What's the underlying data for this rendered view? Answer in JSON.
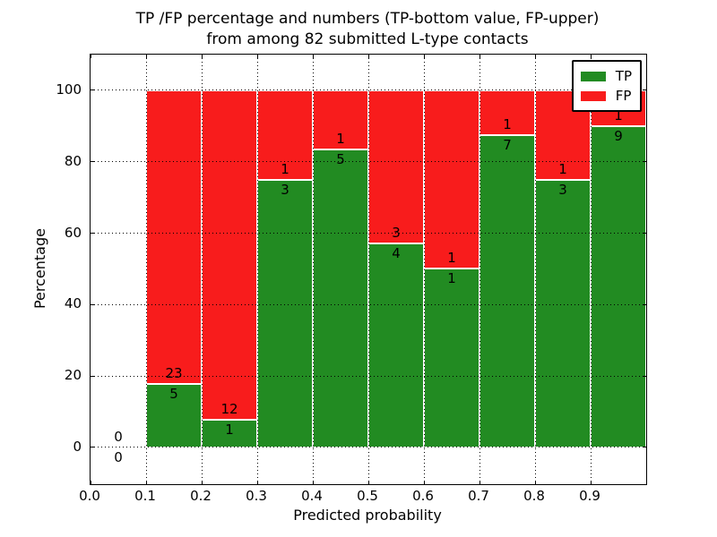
{
  "figure": {
    "title_line1": "TP /FP percentage and numbers (TP-bottom value, FP-upper)",
    "title_line2": "from among 82 submitted L-type contacts",
    "xlabel": "Predicted probability",
    "ylabel": "Percentage"
  },
  "chart_data": {
    "type": "bar",
    "stacked": true,
    "normalized_to_percent": true,
    "title": "TP /FP percentage and numbers (TP-bottom value, FP-upper) from among 82 submitted L-type contacts",
    "xlabel": "Predicted probability",
    "ylabel": "Percentage",
    "total_contacts": 82,
    "bin_width": 0.1,
    "bin_starts": [
      0.0,
      0.1,
      0.2,
      0.3,
      0.4,
      0.5,
      0.6,
      0.7,
      0.8,
      0.9
    ],
    "x_tick_labels": [
      "0.0",
      "0.1",
      "0.2",
      "0.3",
      "0.4",
      "0.5",
      "0.6",
      "0.7",
      "0.8",
      "0.9"
    ],
    "y_ticks": [
      0,
      20,
      40,
      60,
      80,
      100
    ],
    "xlim": [
      0.0,
      1.0
    ],
    "ylim": [
      -10.3,
      110.0
    ],
    "grid": {
      "style": "dotted",
      "axes": "both",
      "above_bars": true
    },
    "legend_position": "upper right",
    "series": [
      {
        "name": "TP",
        "color": "#228b22",
        "counts": [
          0,
          5,
          1,
          3,
          5,
          4,
          1,
          7,
          3,
          9
        ]
      },
      {
        "name": "FP",
        "color": "#f81c1c",
        "counts": [
          0,
          23,
          12,
          1,
          1,
          3,
          1,
          1,
          1,
          1
        ]
      }
    ],
    "tp_percent_of_bin": [
      0,
      17.86,
      7.69,
      75.0,
      83.33,
      57.14,
      50.0,
      87.5,
      75.0,
      90.0
    ],
    "bar_edge_color": "#ffffff",
    "annotation_note": "TP count shown below segment boundary, FP count shown above"
  }
}
